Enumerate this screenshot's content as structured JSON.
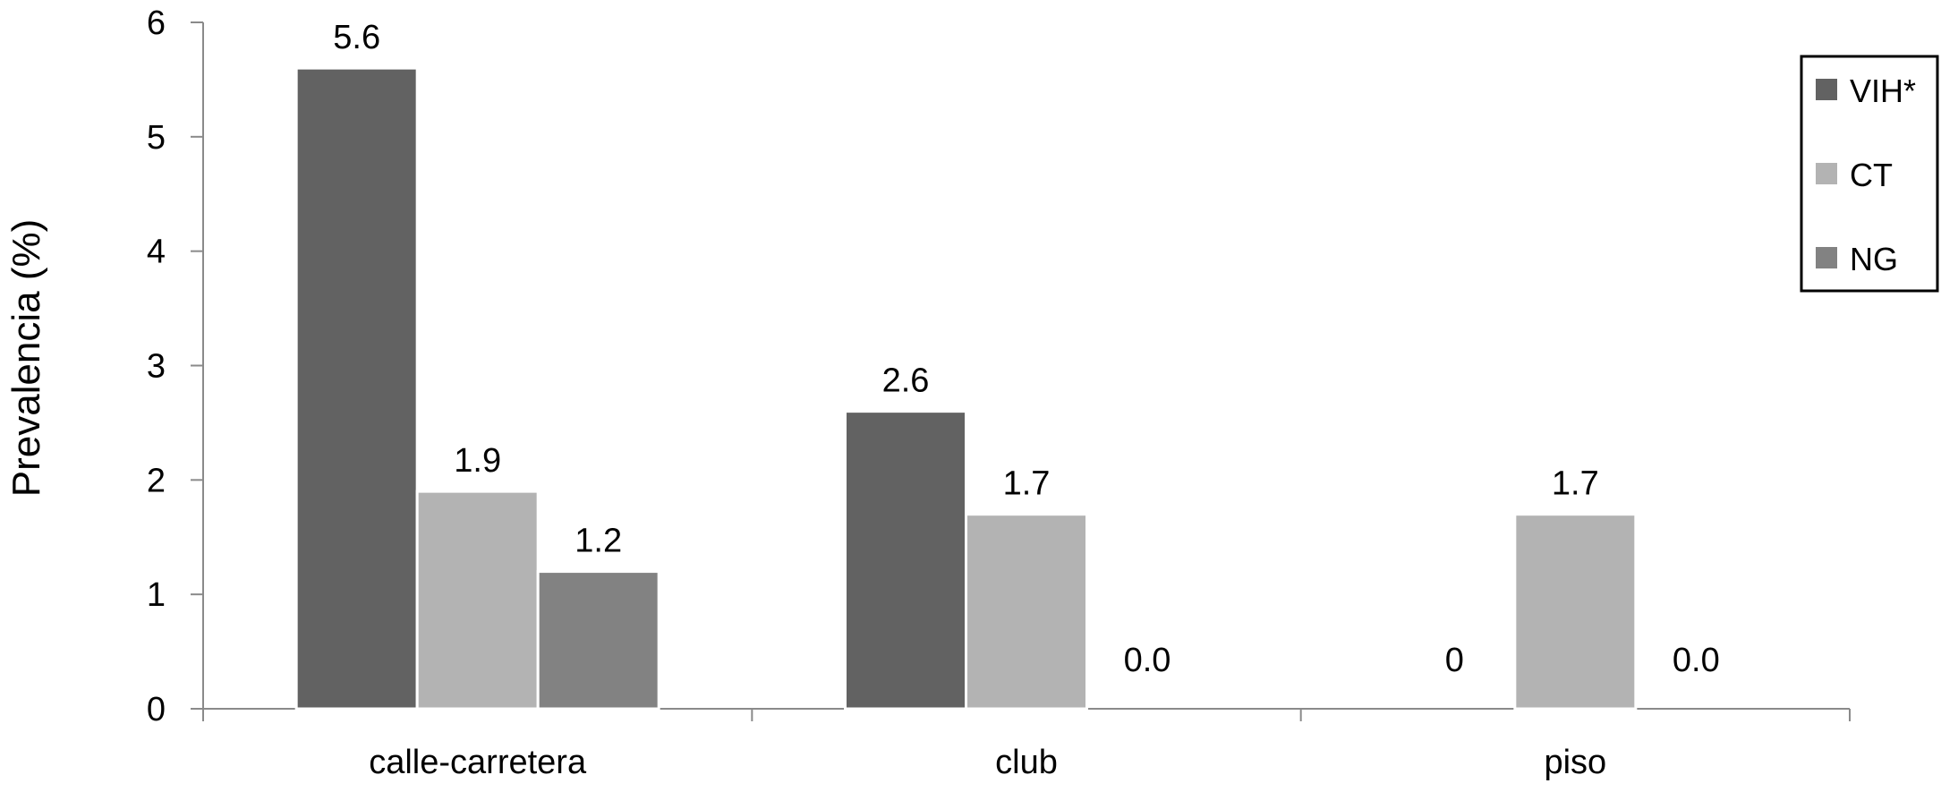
{
  "chart_data": {
    "type": "bar",
    "ylabel": "Prevalencia (%)",
    "xlabel": "",
    "ylim": [
      0,
      6
    ],
    "yticks": [
      0,
      1,
      2,
      3,
      4,
      5,
      6
    ],
    "categories": [
      "calle-carretera",
      "club",
      "piso"
    ],
    "series": [
      {
        "name": "VIH*",
        "color": "#626262",
        "values": [
          5.6,
          2.6,
          0
        ],
        "labels": [
          "5.6",
          "2.6",
          "0"
        ]
      },
      {
        "name": "CT",
        "color": "#b3b3b3",
        "values": [
          1.9,
          1.7,
          1.7
        ],
        "labels": [
          "1.9",
          "1.7",
          "1.7"
        ]
      },
      {
        "name": "NG",
        "color": "#828282",
        "values": [
          1.2,
          0.0,
          0.0
        ],
        "labels": [
          "1.2",
          "0.0",
          "0.0"
        ]
      }
    ],
    "legend": {
      "position": "top-right"
    },
    "grid": false
  }
}
